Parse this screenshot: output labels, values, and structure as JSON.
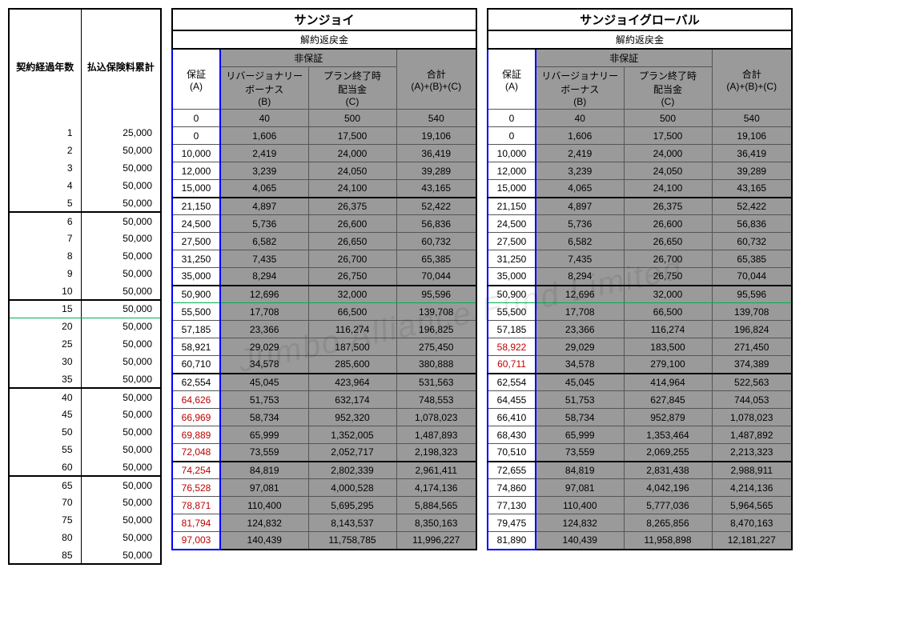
{
  "watermark": "Jumbo Alliance Fund Limited",
  "left_headers": {
    "year": "契約経過年数",
    "premium": "払込保険料累計"
  },
  "left_rows": [
    {
      "y": "1",
      "p": "25,000"
    },
    {
      "y": "2",
      "p": "50,000"
    },
    {
      "y": "3",
      "p": "50,000"
    },
    {
      "y": "4",
      "p": "50,000"
    },
    {
      "y": "5",
      "p": "50,000"
    },
    {
      "y": "6",
      "p": "50,000"
    },
    {
      "y": "7",
      "p": "50,000"
    },
    {
      "y": "8",
      "p": "50,000"
    },
    {
      "y": "9",
      "p": "50,000"
    },
    {
      "y": "10",
      "p": "50,000"
    },
    {
      "y": "15",
      "p": "50,000"
    },
    {
      "y": "20",
      "p": "50,000"
    },
    {
      "y": "25",
      "p": "50,000"
    },
    {
      "y": "30",
      "p": "50,000"
    },
    {
      "y": "35",
      "p": "50,000"
    },
    {
      "y": "40",
      "p": "50,000"
    },
    {
      "y": "45",
      "p": "50,000"
    },
    {
      "y": "50",
      "p": "50,000"
    },
    {
      "y": "55",
      "p": "50,000"
    },
    {
      "y": "60",
      "p": "50,000"
    },
    {
      "y": "65",
      "p": "50,000"
    },
    {
      "y": "70",
      "p": "50,000"
    },
    {
      "y": "75",
      "p": "50,000"
    },
    {
      "y": "80",
      "p": "50,000"
    },
    {
      "y": "85",
      "p": "50,000"
    }
  ],
  "group_breaks": [
    4,
    9,
    10,
    14,
    19
  ],
  "green_row": 10,
  "products": [
    {
      "name": "サンジョイ",
      "sub": "解約返戻金",
      "hdr": {
        "a": "保証",
        "a2": "(A)",
        "ng": "非保証",
        "b": "リバージョナリー",
        "b2": "ボーナス",
        "b3": "(B)",
        "c": "プラン終了時",
        "c2": "配当金",
        "c3": "(C)",
        "d": "合計",
        "d2": "(A)+(B)+(C)"
      },
      "rows": [
        {
          "a": "0",
          "b": "40",
          "c": "500",
          "d": "540"
        },
        {
          "a": "0",
          "b": "1,606",
          "c": "17,500",
          "d": "19,106"
        },
        {
          "a": "10,000",
          "b": "2,419",
          "c": "24,000",
          "d": "36,419"
        },
        {
          "a": "12,000",
          "b": "3,239",
          "c": "24,050",
          "d": "39,289"
        },
        {
          "a": "15,000",
          "b": "4,065",
          "c": "24,100",
          "d": "43,165"
        },
        {
          "a": "21,150",
          "b": "4,897",
          "c": "26,375",
          "d": "52,422"
        },
        {
          "a": "24,500",
          "b": "5,736",
          "c": "26,600",
          "d": "56,836"
        },
        {
          "a": "27,500",
          "b": "6,582",
          "c": "26,650",
          "d": "60,732"
        },
        {
          "a": "31,250",
          "b": "7,435",
          "c": "26,700",
          "d": "65,385"
        },
        {
          "a": "35,000",
          "b": "8,294",
          "c": "26,750",
          "d": "70,044"
        },
        {
          "a": "50,900",
          "b": "12,696",
          "c": "32,000",
          "d": "95,596"
        },
        {
          "a": "55,500",
          "b": "17,708",
          "c": "66,500",
          "d": "139,708"
        },
        {
          "a": "57,185",
          "b": "23,366",
          "c": "116,274",
          "d": "196,825"
        },
        {
          "a": "58,921",
          "b": "29,029",
          "c": "187,500",
          "d": "275,450"
        },
        {
          "a": "60,710",
          "b": "34,578",
          "c": "285,600",
          "d": "380,888"
        },
        {
          "a": "62,554",
          "b": "45,045",
          "c": "423,964",
          "d": "531,563"
        },
        {
          "a": "64,626",
          "ar": true,
          "b": "51,753",
          "c": "632,174",
          "d": "748,553"
        },
        {
          "a": "66,969",
          "ar": true,
          "b": "58,734",
          "c": "952,320",
          "d": "1,078,023"
        },
        {
          "a": "69,889",
          "ar": true,
          "b": "65,999",
          "c": "1,352,005",
          "d": "1,487,893"
        },
        {
          "a": "72,048",
          "ar": true,
          "b": "73,559",
          "c": "2,052,717",
          "d": "2,198,323"
        },
        {
          "a": "74,254",
          "ar": true,
          "b": "84,819",
          "c": "2,802,339",
          "d": "2,961,411"
        },
        {
          "a": "76,528",
          "ar": true,
          "b": "97,081",
          "c": "4,000,528",
          "d": "4,174,136"
        },
        {
          "a": "78,871",
          "ar": true,
          "b": "110,400",
          "c": "5,695,295",
          "d": "5,884,565"
        },
        {
          "a": "81,794",
          "ar": true,
          "b": "124,832",
          "c": "8,143,537",
          "d": "8,350,163"
        },
        {
          "a": "97,003",
          "ar": true,
          "b": "140,439",
          "c": "11,758,785",
          "d": "11,996,227"
        }
      ]
    },
    {
      "name": "サンジョイグローバル",
      "sub": "解約返戻金",
      "hdr": {
        "a": "保証",
        "a2": "(A)",
        "ng": "非保証",
        "b": "リバージョナリー",
        "b2": "ボーナス",
        "b3": "(B)",
        "c": "プラン終了時",
        "c2": "配当金",
        "c3": "(C)",
        "d": "合計",
        "d2": "(A)+(B)+(C)"
      },
      "rows": [
        {
          "a": "0",
          "b": "40",
          "c": "500",
          "d": "540"
        },
        {
          "a": "0",
          "b": "1,606",
          "c": "17,500",
          "d": "19,106"
        },
        {
          "a": "10,000",
          "b": "2,419",
          "c": "24,000",
          "d": "36,419"
        },
        {
          "a": "12,000",
          "b": "3,239",
          "c": "24,050",
          "d": "39,289"
        },
        {
          "a": "15,000",
          "b": "4,065",
          "c": "24,100",
          "d": "43,165"
        },
        {
          "a": "21,150",
          "b": "4,897",
          "c": "26,375",
          "d": "52,422"
        },
        {
          "a": "24,500",
          "b": "5,736",
          "c": "26,600",
          "d": "56,836"
        },
        {
          "a": "27,500",
          "b": "6,582",
          "c": "26,650",
          "d": "60,732"
        },
        {
          "a": "31,250",
          "b": "7,435",
          "c": "26,700",
          "d": "65,385"
        },
        {
          "a": "35,000",
          "b": "8,294",
          "c": "26,750",
          "d": "70,044"
        },
        {
          "a": "50,900",
          "b": "12,696",
          "c": "32,000",
          "d": "95,596"
        },
        {
          "a": "55,500",
          "b": "17,708",
          "c": "66,500",
          "d": "139,708"
        },
        {
          "a": "57,185",
          "b": "23,366",
          "c": "116,274",
          "d": "196,824"
        },
        {
          "a": "58,922",
          "ar": true,
          "b": "29,029",
          "c": "183,500",
          "d": "271,450"
        },
        {
          "a": "60,711",
          "ar": true,
          "b": "34,578",
          "c": "279,100",
          "d": "374,389"
        },
        {
          "a": "62,554",
          "b": "45,045",
          "c": "414,964",
          "d": "522,563"
        },
        {
          "a": "64,455",
          "b": "51,753",
          "c": "627,845",
          "d": "744,053"
        },
        {
          "a": "66,410",
          "b": "58,734",
          "c": "952,879",
          "d": "1,078,023"
        },
        {
          "a": "68,430",
          "b": "65,999",
          "c": "1,353,464",
          "d": "1,487,892"
        },
        {
          "a": "70,510",
          "b": "73,559",
          "c": "2,069,255",
          "d": "2,213,323"
        },
        {
          "a": "72,655",
          "b": "84,819",
          "c": "2,831,438",
          "d": "2,988,911"
        },
        {
          "a": "74,860",
          "b": "97,081",
          "c": "4,042,196",
          "d": "4,214,136"
        },
        {
          "a": "77,130",
          "b": "110,400",
          "c": "5,777,036",
          "d": "5,964,565"
        },
        {
          "a": "79,475",
          "b": "124,832",
          "c": "8,265,856",
          "d": "8,470,163"
        },
        {
          "a": "81,890",
          "b": "140,439",
          "c": "11,958,898",
          "d": "12,181,227"
        }
      ]
    }
  ],
  "colors": {
    "shade": "#9a9a9a",
    "blue": "#0000ff",
    "green": "#00b050",
    "red": "#c00000",
    "border": "#000000"
  }
}
